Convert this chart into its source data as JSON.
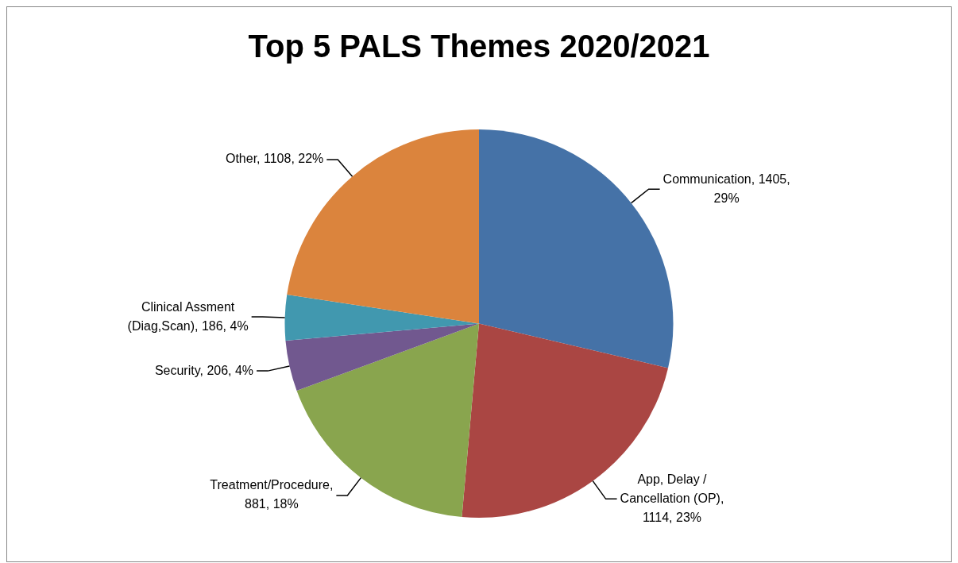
{
  "chart_data": {
    "type": "pie",
    "title": "Top 5 PALS Themes 2020/2021",
    "categories": [
      "Communication",
      "App, Delay / Cancellation (OP)",
      "Treatment/Procedure",
      "Security",
      "Clinical Assment (Diag,Scan)",
      "Other"
    ],
    "values": [
      1405,
      1114,
      881,
      206,
      186,
      1108
    ],
    "value_labels": [
      ", 1405, 29%",
      ", 1114, 23%",
      ", 881, 18%",
      ", 206, 4%",
      ", 186, 4%",
      ", 1108, 22%"
    ],
    "colors": [
      "#4572a7",
      "#aa4643",
      "#89a54e",
      "#71588f",
      "#4198af",
      "#db843d"
    ],
    "legend": false
  }
}
